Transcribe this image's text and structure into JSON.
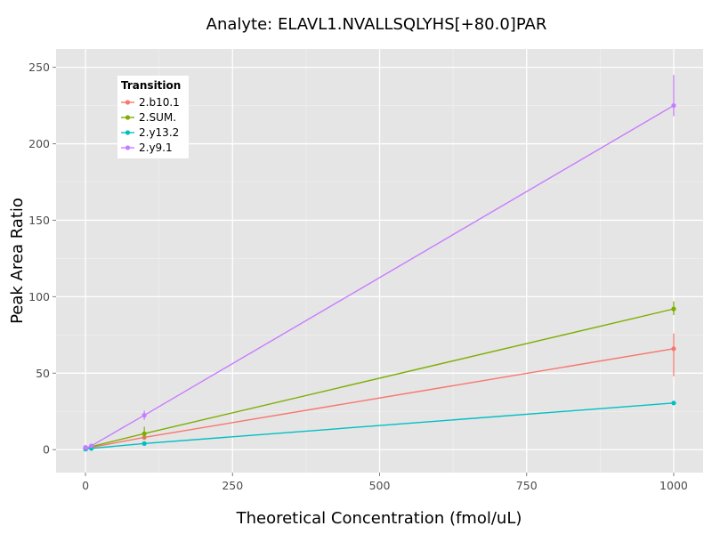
{
  "chart_data": {
    "type": "line",
    "title": "Analyte: ELAVL1.NVALLSQLYHS[+80.0]PAR",
    "xlabel": "Theoretical Concentration (fmol/uL)",
    "ylabel": "Peak Area Ratio",
    "xlim": [
      -50,
      1050
    ],
    "ylim": [
      -15,
      262
    ],
    "x_ticks": [
      0,
      250,
      500,
      750,
      1000
    ],
    "x_tick_labels": [
      "0",
      "250",
      "500",
      "750",
      "1000"
    ],
    "y_ticks": [
      0,
      50,
      100,
      150,
      200,
      250
    ],
    "y_tick_labels": [
      "0",
      "50",
      "100",
      "150",
      "200",
      "250"
    ],
    "grid": true,
    "legend": {
      "title": "Transition",
      "position": "top-left"
    },
    "series": [
      {
        "name": "2.b10.1",
        "color": "#F8766D",
        "points": [
          {
            "x": 0,
            "y": 0.5,
            "err_low": 0.0,
            "err_high": 1.5
          },
          {
            "x": 1,
            "y": 1.0,
            "err_low": 0.5,
            "err_high": 1.5
          },
          {
            "x": 10,
            "y": 1.5,
            "err_low": 1.0,
            "err_high": 2.0
          },
          {
            "x": 100,
            "y": 8.0,
            "err_low": 6.5,
            "err_high": 9.5
          },
          {
            "x": 1000,
            "y": 66.0,
            "err_low": 48.0,
            "err_high": 76.0
          }
        ]
      },
      {
        "name": "2.SUM.",
        "color": "#7CAE00",
        "points": [
          {
            "x": 0,
            "y": 0.5,
            "err_low": 0.0,
            "err_high": 1.0
          },
          {
            "x": 1,
            "y": 1.0,
            "err_low": 0.5,
            "err_high": 1.5
          },
          {
            "x": 10,
            "y": 2.0,
            "err_low": 1.5,
            "err_high": 2.5
          },
          {
            "x": 100,
            "y": 10.5,
            "err_low": 7.0,
            "err_high": 15.0
          },
          {
            "x": 1000,
            "y": 92.0,
            "err_low": 88.0,
            "err_high": 97.0
          }
        ]
      },
      {
        "name": "2.y13.2",
        "color": "#00BFC4",
        "points": [
          {
            "x": 0,
            "y": 0.3,
            "err_low": 0.0,
            "err_high": 0.6
          },
          {
            "x": 1,
            "y": 0.5,
            "err_low": 0.3,
            "err_high": 0.8
          },
          {
            "x": 10,
            "y": 0.8,
            "err_low": 0.5,
            "err_high": 1.1
          },
          {
            "x": 100,
            "y": 4.0,
            "err_low": 3.5,
            "err_high": 4.5
          },
          {
            "x": 1000,
            "y": 30.5,
            "err_low": 29.5,
            "err_high": 31.5
          }
        ]
      },
      {
        "name": "2.y9.1",
        "color": "#C77CFF",
        "points": [
          {
            "x": 0,
            "y": 1.5,
            "err_low": 0.5,
            "err_high": 2.5
          },
          {
            "x": 1,
            "y": 1.0,
            "err_low": 0.5,
            "err_high": 1.5
          },
          {
            "x": 10,
            "y": 2.5,
            "err_low": 1.5,
            "err_high": 3.5
          },
          {
            "x": 100,
            "y": 22.5,
            "err_low": 19.5,
            "err_high": 25.5
          },
          {
            "x": 1000,
            "y": 225.0,
            "err_low": 218.0,
            "err_high": 245.0
          }
        ]
      }
    ]
  }
}
